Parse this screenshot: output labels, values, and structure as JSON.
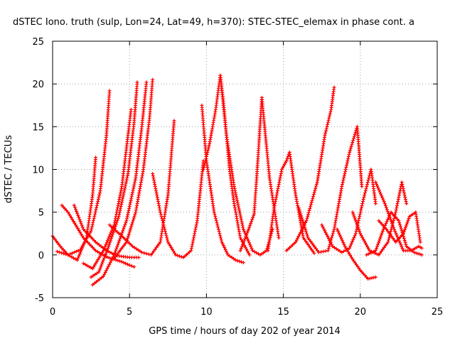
{
  "chart_data": {
    "type": "scatter",
    "title": "dSTEC Iono. truth (sulp, Lon=24, Lat=49, h=370): STEC-STEC_elemax in phase cont. a",
    "xlabel": "GPS time / hours of day 202 of year 2014",
    "ylabel": "dSTEC  / TECUs",
    "xlim": [
      0,
      25
    ],
    "ylim": [
      -5,
      25
    ],
    "xticks": [
      0,
      5,
      10,
      15,
      20,
      25
    ],
    "yticks": [
      -5,
      0,
      5,
      10,
      15,
      20,
      25
    ],
    "xtick_labels": [
      "0",
      "5",
      "10",
      "15",
      "20",
      "25"
    ],
    "ytick_labels": [
      "-5",
      "0",
      "5",
      "10",
      "15",
      "20",
      "25"
    ],
    "grid": true,
    "marker": "+",
    "color": "#ff0000",
    "series": [
      {
        "x": [
          0.0,
          0.5,
          1.0,
          1.6,
          2.2,
          2.6,
          2.8
        ],
        "y": [
          2.2,
          1.0,
          0.0,
          -0.6,
          2.0,
          7.0,
          11.4
        ]
      },
      {
        "x": [
          0.3,
          1.0,
          1.8,
          2.5,
          3.1,
          3.5,
          3.7
        ],
        "y": [
          0.4,
          0.0,
          0.6,
          2.8,
          7.5,
          14.0,
          19.2
        ]
      },
      {
        "x": [
          2.0,
          2.6,
          3.3,
          4.0,
          4.5,
          4.9,
          5.1
        ],
        "y": [
          -1.0,
          -1.6,
          0.5,
          3.5,
          8.0,
          14.0,
          17.0
        ]
      },
      {
        "x": [
          2.5,
          3.0,
          3.6,
          4.3,
          4.9,
          5.3,
          5.5
        ],
        "y": [
          -2.6,
          -2.0,
          0.8,
          4.5,
          9.5,
          15.5,
          20.2
        ]
      },
      {
        "x": [
          2.6,
          3.3,
          4.0,
          4.8,
          5.4,
          5.8,
          6.1
        ],
        "y": [
          -3.5,
          -2.5,
          0.0,
          4.0,
          9.0,
          15.0,
          20.2
        ]
      },
      {
        "x": [
          4.0,
          4.8,
          5.4,
          5.9,
          6.3,
          6.5
        ],
        "y": [
          -0.4,
          1.5,
          5.0,
          10.0,
          16.0,
          20.5
        ]
      },
      {
        "x": [
          0.6,
          1.0,
          1.5,
          2.0,
          2.8,
          3.6,
          4.5,
          5.0,
          5.3
        ],
        "y": [
          5.8,
          5.0,
          3.5,
          2.0,
          0.5,
          -0.3,
          -0.8,
          -1.2,
          -1.4
        ]
      },
      {
        "x": [
          1.4,
          2.0,
          2.8,
          3.5,
          4.2,
          5.0,
          5.6
        ],
        "y": [
          5.8,
          3.0,
          1.5,
          0.5,
          -0.1,
          -0.3,
          -0.3
        ]
      },
      {
        "x": [
          3.7,
          4.5,
          5.2,
          5.8,
          6.4,
          7.0,
          7.5,
          7.9
        ],
        "y": [
          3.5,
          2.2,
          1.0,
          0.3,
          0.0,
          1.5,
          7.0,
          15.7
        ]
      },
      {
        "x": [
          6.5,
          7.0,
          7.5,
          8.0,
          8.5,
          9.0,
          9.4,
          9.8
        ],
        "y": [
          9.5,
          5.0,
          1.5,
          0.0,
          -0.3,
          0.5,
          4.0,
          11.0
        ]
      },
      {
        "x": [
          9.7,
          10.0,
          10.5,
          11.0,
          11.4,
          11.9,
          12.4
        ],
        "y": [
          17.5,
          11.0,
          5.0,
          1.5,
          0.0,
          -0.6,
          -0.9
        ]
      },
      {
        "x": [
          9.8,
          10.2,
          10.6,
          10.9,
          11.1,
          11.3,
          11.5,
          11.8,
          12.2,
          12.8
        ],
        "y": [
          10.0,
          13.0,
          17.0,
          21.0,
          18.0,
          14.0,
          10.0,
          6.0,
          2.0,
          0.0
        ]
      },
      {
        "x": [
          10.9,
          11.3,
          11.8,
          12.4,
          13.0,
          13.5,
          13.9,
          14.3
        ],
        "y": [
          21.0,
          14.0,
          8.0,
          3.0,
          0.5,
          0.0,
          0.5,
          3.0
        ]
      },
      {
        "x": [
          12.2,
          12.7,
          13.1,
          13.3,
          13.6,
          14.1,
          14.7
        ],
        "y": [
          0.5,
          2.8,
          4.8,
          10.0,
          18.4,
          9.0,
          2.0
        ]
      },
      {
        "x": [
          14.0,
          14.4,
          14.9,
          15.2,
          15.4,
          15.8,
          16.3,
          17.0
        ],
        "y": [
          0.5,
          5.5,
          10.0,
          11.0,
          12.0,
          7.0,
          2.0,
          0.2
        ]
      },
      {
        "x": [
          15.2,
          15.8,
          16.5,
          17.2,
          17.7,
          18.1,
          18.3
        ],
        "y": [
          0.5,
          1.5,
          4.0,
          8.5,
          14.0,
          17.0,
          19.6
        ]
      },
      {
        "x": [
          16.0,
          16.6,
          17.3,
          17.9,
          18.3,
          18.8,
          19.3,
          19.8,
          20.1
        ],
        "y": [
          5.5,
          2.0,
          0.3,
          0.5,
          3.0,
          8.0,
          12.0,
          15.0,
          8.0
        ]
      },
      {
        "x": [
          17.5,
          18.2,
          18.8,
          19.3,
          19.7,
          20.2,
          20.7,
          21.0
        ],
        "y": [
          3.5,
          1.0,
          0.3,
          0.8,
          2.5,
          6.5,
          10.0,
          6.0
        ]
      },
      {
        "x": [
          18.5,
          19.0,
          19.5,
          20.0,
          20.5,
          21.0
        ],
        "y": [
          3.0,
          1.0,
          -0.5,
          -1.8,
          -2.8,
          -2.6
        ]
      },
      {
        "x": [
          19.5,
          20.0,
          20.6,
          21.2,
          21.8,
          22.3,
          22.7,
          23.0
        ],
        "y": [
          5.0,
          2.5,
          0.5,
          0.0,
          1.5,
          5.0,
          8.5,
          6.0
        ]
      },
      {
        "x": [
          20.4,
          21.0,
          21.5,
          22.0,
          22.5,
          23.0,
          23.5,
          24.0
        ],
        "y": [
          0.0,
          0.5,
          3.0,
          5.0,
          4.0,
          1.0,
          0.3,
          0.0
        ]
      },
      {
        "x": [
          21.2,
          21.7,
          22.3,
          22.8,
          23.2,
          23.6,
          23.9
        ],
        "y": [
          4.0,
          3.0,
          1.5,
          2.5,
          4.5,
          5.0,
          1.5
        ]
      },
      {
        "x": [
          21.0,
          21.6,
          22.2,
          22.8,
          23.3,
          23.8,
          24.0
        ],
        "y": [
          8.5,
          6.0,
          3.0,
          0.5,
          0.5,
          1.0,
          0.8
        ]
      }
    ]
  }
}
